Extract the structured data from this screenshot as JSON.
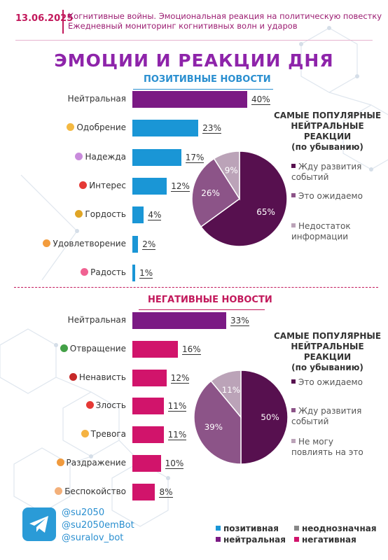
{
  "header": {
    "date": "13.06.2025",
    "line1": "Когнитивные войны. Эмоциональная реакция на политическую повестку",
    "line2": "Ежедневный мониторинг когнитивных волн и ударов"
  },
  "title": "ЭМОЦИИ И РЕАКЦИИ ДНЯ",
  "colors": {
    "positive": "#1a96d6",
    "neutral": "#7b1a84",
    "negative": "#d1146b",
    "ambiguous": "#888888",
    "pie_dark": "#57104f",
    "pie_mid": "#8c5488",
    "pie_light": "#bba3b8"
  },
  "positive": {
    "section_title": "ПОЗИТИВНЫЕ НОВОСТИ",
    "icons": [
      "",
      "clapping-hands-icon",
      "praying-hands-icon",
      "exclamation-question-icon",
      "trophy-icon",
      "smiling-face-icon",
      "heart-face-icon"
    ],
    "chart_data": {
      "type": "bar",
      "categories": [
        "Нейтральная",
        "Одобрение",
        "Надежда",
        "Интерес",
        "Гордость",
        "Удовлетворение",
        "Радость"
      ],
      "values": [
        40,
        23,
        17,
        12,
        4,
        2,
        1
      ],
      "labels": [
        "40%",
        "23%",
        "17%",
        "12%",
        "4%",
        "2%",
        "1%"
      ],
      "bar_colors": [
        "neutral",
        "positive",
        "positive",
        "positive",
        "positive",
        "positive",
        "positive"
      ]
    },
    "reactions_title": [
      "САМЫЕ ПОПУЛЯРНЫЕ",
      "НЕЙТРАЛЬНЫЕ РЕАКЦИИ",
      "(по убыванию)"
    ],
    "pie": {
      "type": "pie",
      "values": [
        65,
        26,
        9
      ],
      "labels": [
        "65%",
        "26%",
        "9%"
      ],
      "legend": [
        "Жду развития событий",
        "Это ожидаемо",
        "Недостаток информации"
      ]
    }
  },
  "negative": {
    "section_title": "НЕГАТИВНЫЕ НОВОСТИ",
    "icons": [
      "",
      "nauseated-face-icon",
      "angry-symbols-face-icon",
      "angry-face-icon",
      "worried-face-icon",
      "frowning-face-icon",
      "anxious-face-icon"
    ],
    "chart_data": {
      "type": "bar",
      "categories": [
        "Нейтральная",
        "Отвращение",
        "Ненависть",
        "Злость",
        "Тревога",
        "Раздражение",
        "Беспокойство"
      ],
      "values": [
        33,
        16,
        12,
        11,
        11,
        10,
        8
      ],
      "labels": [
        "33%",
        "16%",
        "12%",
        "11%",
        "11%",
        "10%",
        "8%"
      ],
      "bar_colors": [
        "neutral",
        "negative",
        "negative",
        "negative",
        "negative",
        "negative",
        "negative"
      ]
    },
    "reactions_title": [
      "САМЫЕ ПОПУЛЯРНЫЕ",
      "НЕЙТРАЛЬНЫЕ РЕАКЦИИ",
      "(по убыванию)"
    ],
    "pie": {
      "type": "pie",
      "values": [
        50,
        39,
        11
      ],
      "labels": [
        "50%",
        "39%",
        "11%"
      ],
      "legend": [
        "Это ожидаемо",
        "Жду развития событий",
        "Не могу повлиять на это"
      ]
    }
  },
  "footer": {
    "handles": [
      "@su2050",
      "@su2050emBot",
      "@suralov_bot"
    ],
    "legend": [
      "позитивная",
      "нейтральная",
      "неоднозначная",
      "негативная"
    ]
  }
}
